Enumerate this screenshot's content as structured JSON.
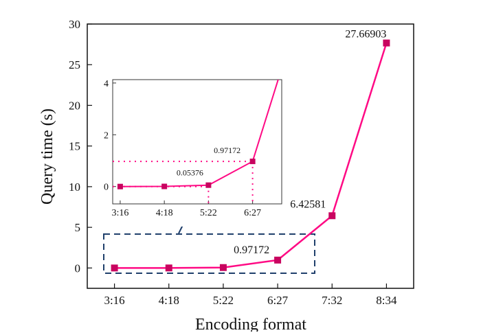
{
  "chart_data": {
    "type": "line",
    "title": "",
    "xlabel": "Encoding format",
    "ylabel": "Query time (s)",
    "categories": [
      "3:16",
      "4:18",
      "5:22",
      "6:27",
      "7:32",
      "8:34"
    ],
    "values": [
      0.0,
      0.005,
      0.05376,
      0.97172,
      6.42581,
      27.66903
    ],
    "ylim": [
      -2.5,
      30
    ],
    "yticks": [
      0,
      5,
      10,
      15,
      20,
      25,
      30
    ],
    "grid": false,
    "legend": "none",
    "annotations": [
      {
        "category": "6:27",
        "text": "0.97172"
      },
      {
        "category": "7:32",
        "text": "6.42581"
      },
      {
        "category": "8:34",
        "text": "27.66903"
      }
    ],
    "colors": {
      "line": "#ff0a84",
      "marker": "#c8045f",
      "highlight_box": "#1f3f6b"
    },
    "inset": {
      "categories": [
        "3:16",
        "4:18",
        "5:22",
        "6:27"
      ],
      "ylim": [
        -0.67,
        4.13
      ],
      "yticks": [
        0,
        2,
        4
      ],
      "annotations": [
        {
          "category": "5:22",
          "text": "0.05376"
        },
        {
          "category": "6:27",
          "text": "0.97172"
        }
      ]
    }
  }
}
